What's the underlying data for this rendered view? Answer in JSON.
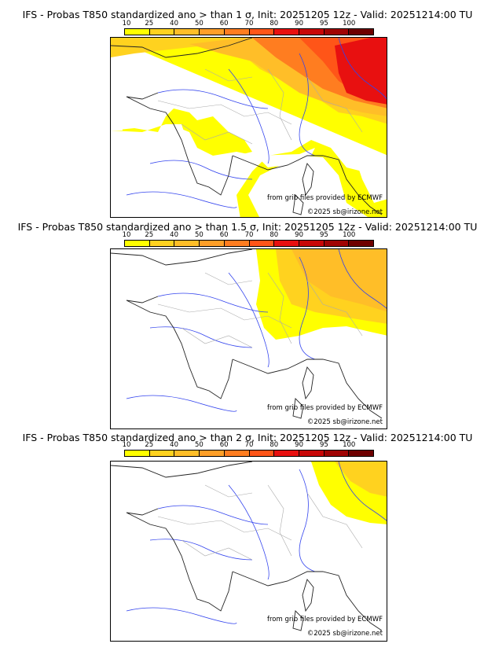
{
  "colors": {
    "bins": [
      "#ffff00",
      "#ffd21f",
      "#ffbe28",
      "#ff9f28",
      "#ff7d20",
      "#ff5518",
      "#e81010",
      "#c80808",
      "#a00404",
      "#6e0000"
    ],
    "coast": "#222222",
    "river": "#3344ee",
    "border": "#aaaaaa"
  },
  "legend": {
    "ticks": [
      "10",
      "25",
      "40",
      "50",
      "60",
      "70",
      "80",
      "90",
      "95",
      "100"
    ]
  },
  "credits": {
    "source": "from grib files provided by ECMWF",
    "copyright": "©2025 sb@irizone.net"
  },
  "panels": [
    {
      "title": "IFS - Probas T850  standardized ano > than 1 σ, Init: 20251205 12z - Valid: 20251214:00 TU"
    },
    {
      "title": "IFS - Probas T850  standardized ano > than 1.5 σ, Init: 20251205 12z - Valid: 20251214:00 TU"
    },
    {
      "title": "IFS - Probas T850  standardized ano > than 2 σ, Init: 20251205 12z - Valid: 20251214:00 TU"
    }
  ]
}
